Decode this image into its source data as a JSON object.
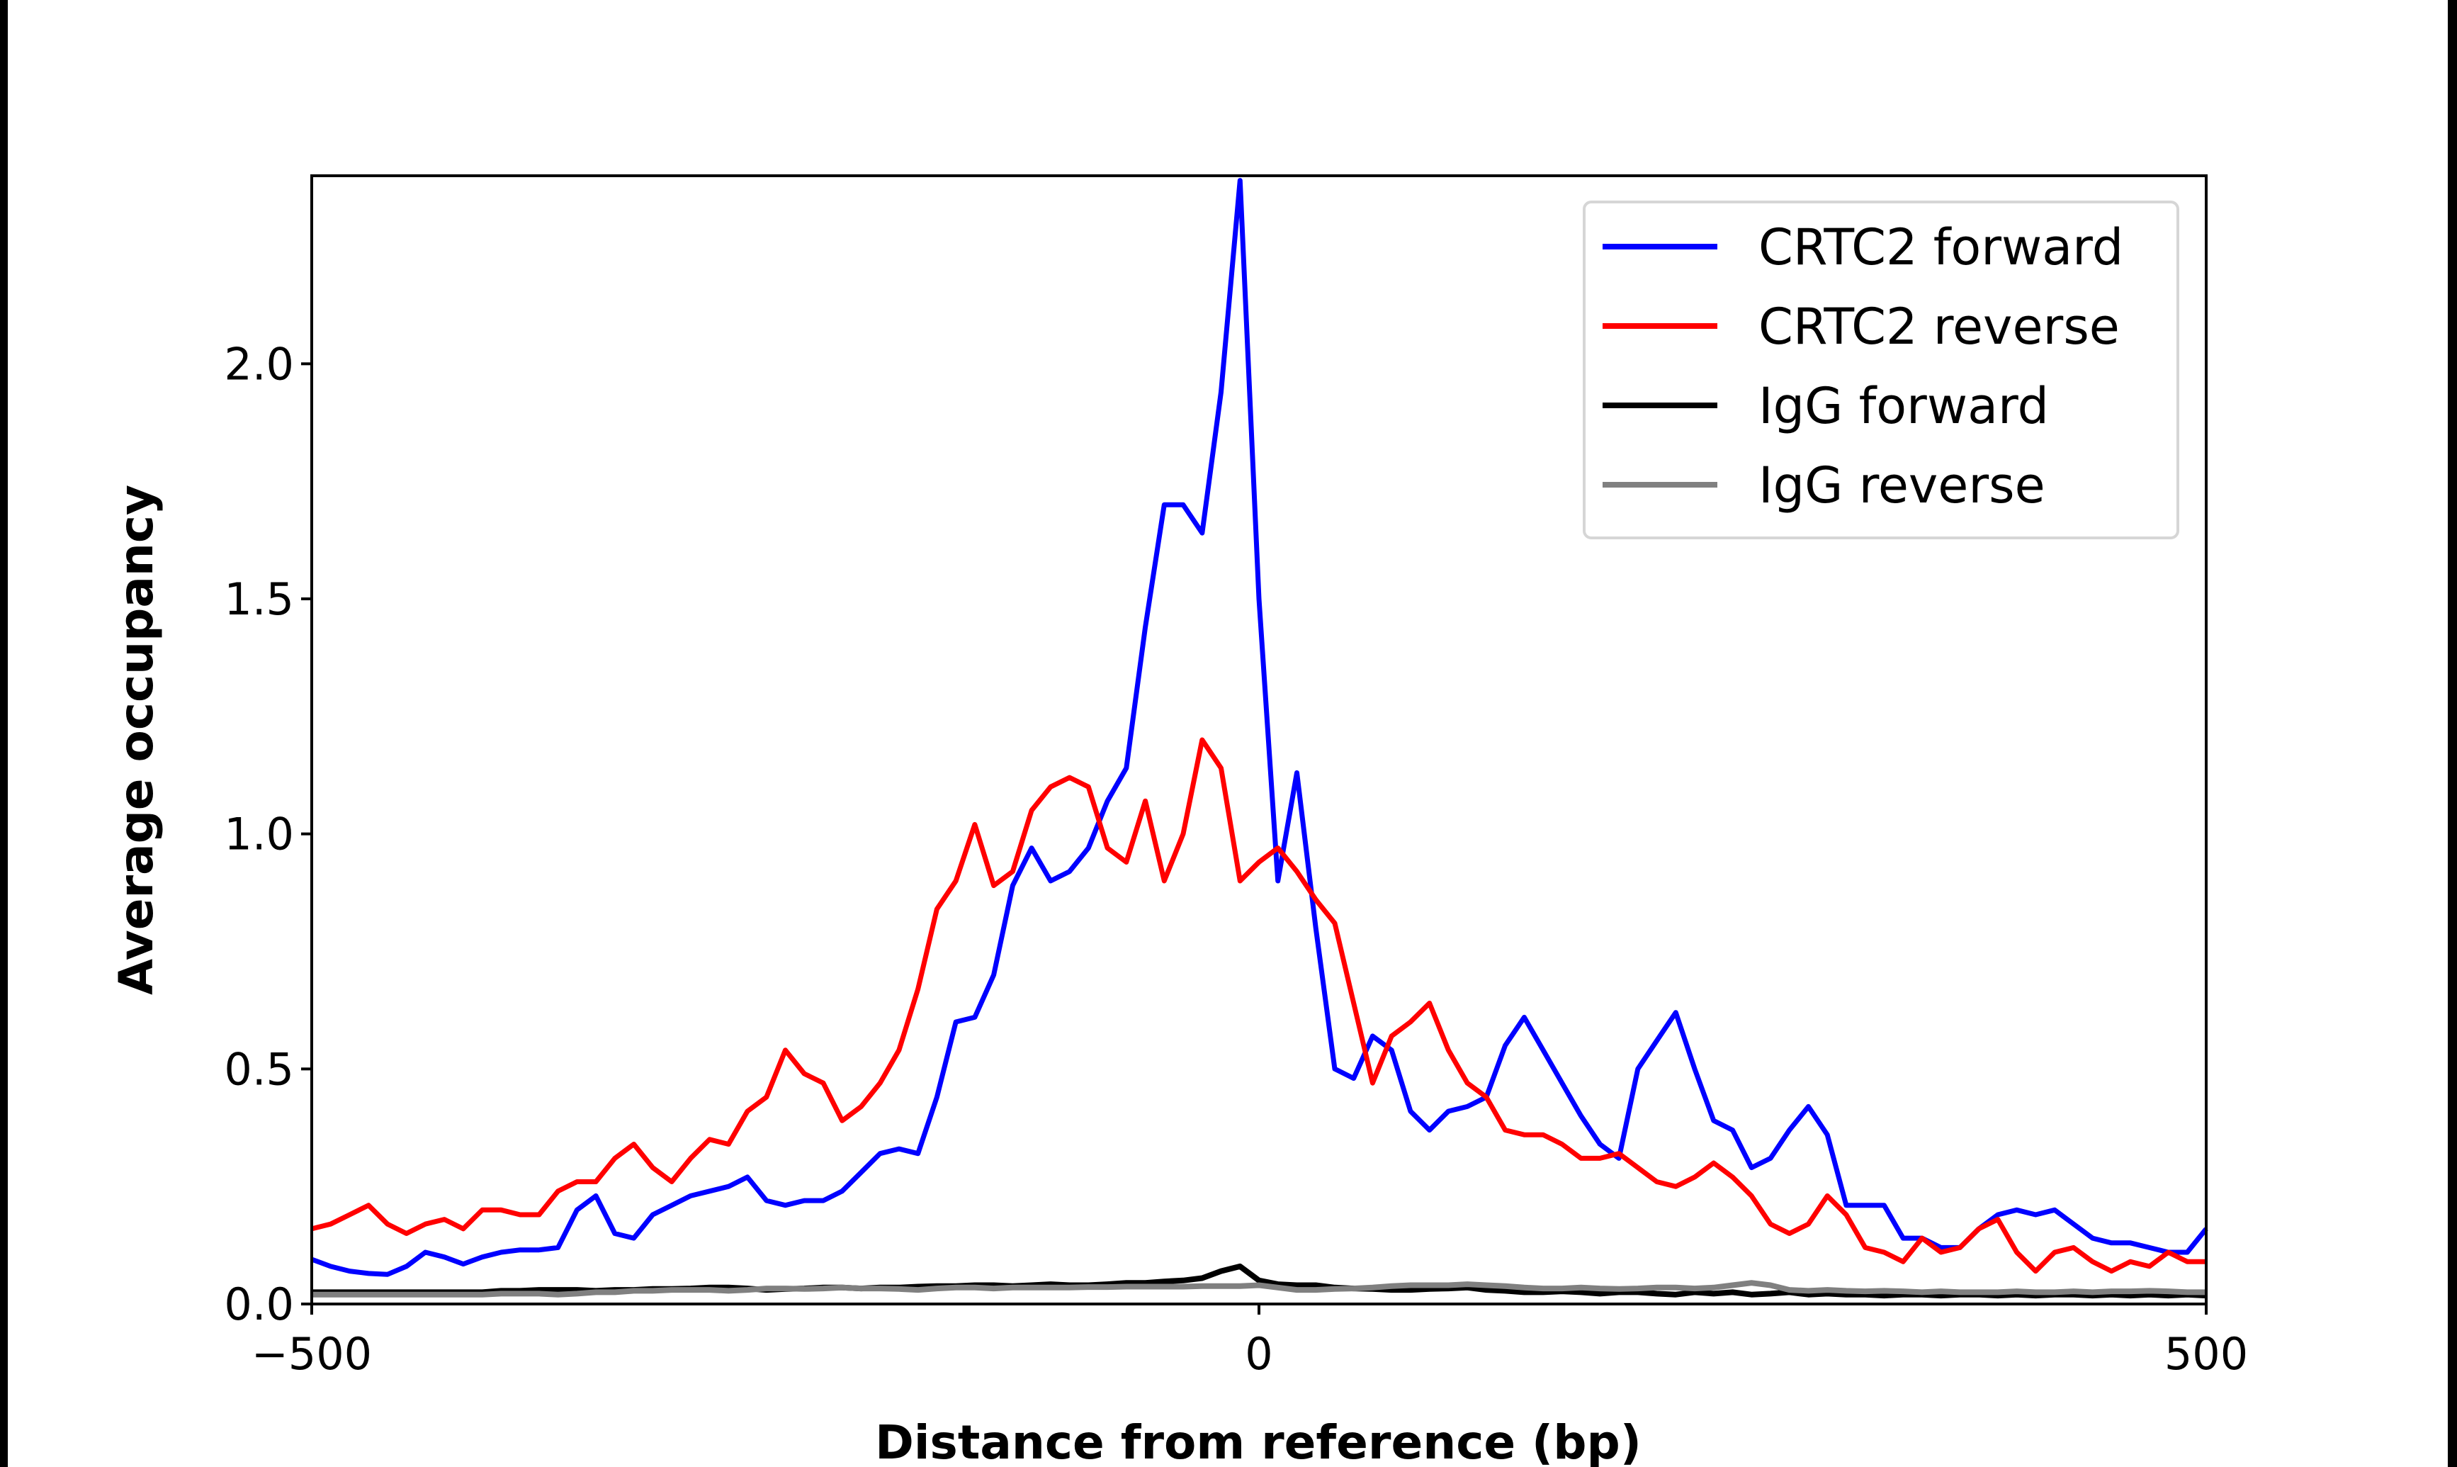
{
  "chart_data": {
    "type": "line",
    "title": "",
    "xlabel": "Distance from reference (bp)",
    "ylabel": "Average occupancy",
    "xlim": [
      -500,
      500
    ],
    "ylim": [
      0,
      2.4
    ],
    "xticks": [
      -500,
      0,
      500
    ],
    "xtick_labels": [
      "−500",
      "0",
      "500"
    ],
    "yticks": [
      0,
      0.5,
      1.0,
      1.5,
      2.0
    ],
    "ytick_labels": [
      "0.0",
      "0.5",
      "1.0",
      "1.5",
      "2.0"
    ],
    "grid": false,
    "legend_position": "top-right",
    "x_start": -500,
    "x_step": 10,
    "series": [
      {
        "name": "CRTC2 forward",
        "color": "#0000ff",
        "values": [
          0.095,
          0.08,
          0.07,
          0.065,
          0.063,
          0.08,
          0.11,
          0.1,
          0.085,
          0.1,
          0.11,
          0.115,
          0.115,
          0.12,
          0.2,
          0.23,
          0.15,
          0.14,
          0.19,
          0.21,
          0.23,
          0.24,
          0.25,
          0.27,
          0.22,
          0.21,
          0.22,
          0.22,
          0.24,
          0.28,
          0.32,
          0.33,
          0.32,
          0.44,
          0.6,
          0.61,
          0.7,
          0.89,
          0.97,
          0.9,
          0.92,
          0.97,
          1.07,
          1.14,
          1.44,
          1.7,
          1.7,
          1.64,
          1.94,
          2.39,
          1.5,
          0.9,
          1.13,
          0.8,
          0.5,
          0.48,
          0.57,
          0.54,
          0.41,
          0.37,
          0.41,
          0.42,
          0.44,
          0.55,
          0.61,
          0.54,
          0.47,
          0.4,
          0.34,
          0.31,
          0.5,
          0.56,
          0.62,
          0.5,
          0.39,
          0.37,
          0.29,
          0.31,
          0.37,
          0.42,
          0.36,
          0.21,
          0.21,
          0.21,
          0.14,
          0.14,
          0.12,
          0.12,
          0.16,
          0.19,
          0.2,
          0.19,
          0.2,
          0.17,
          0.14,
          0.13,
          0.13,
          0.12,
          0.11,
          0.11,
          0.16
        ]
      },
      {
        "name": "CRTC2 reverse",
        "color": "#ff0000",
        "values": [
          0.16,
          0.17,
          0.19,
          0.21,
          0.17,
          0.15,
          0.17,
          0.18,
          0.16,
          0.2,
          0.2,
          0.19,
          0.19,
          0.24,
          0.26,
          0.26,
          0.31,
          0.34,
          0.29,
          0.26,
          0.31,
          0.35,
          0.34,
          0.41,
          0.44,
          0.54,
          0.49,
          0.47,
          0.39,
          0.42,
          0.47,
          0.54,
          0.67,
          0.84,
          0.9,
          1.02,
          0.89,
          0.92,
          1.05,
          1.1,
          1.12,
          1.1,
          0.97,
          0.94,
          1.07,
          0.9,
          1.0,
          1.2,
          1.14,
          0.9,
          0.94,
          0.97,
          0.92,
          0.86,
          0.81,
          0.64,
          0.47,
          0.57,
          0.6,
          0.64,
          0.54,
          0.47,
          0.44,
          0.37,
          0.36,
          0.36,
          0.34,
          0.31,
          0.31,
          0.32,
          0.29,
          0.26,
          0.25,
          0.27,
          0.3,
          0.27,
          0.23,
          0.17,
          0.15,
          0.17,
          0.23,
          0.19,
          0.12,
          0.11,
          0.09,
          0.14,
          0.11,
          0.12,
          0.16,
          0.18,
          0.11,
          0.07,
          0.11,
          0.12,
          0.09,
          0.07,
          0.09,
          0.08,
          0.11,
          0.09,
          0.09
        ]
      },
      {
        "name": "IgG forward",
        "color": "#000000",
        "values": [
          0.025,
          0.025,
          0.025,
          0.025,
          0.025,
          0.025,
          0.025,
          0.025,
          0.025,
          0.025,
          0.028,
          0.028,
          0.03,
          0.03,
          0.03,
          0.028,
          0.03,
          0.03,
          0.032,
          0.032,
          0.033,
          0.035,
          0.035,
          0.033,
          0.03,
          0.032,
          0.033,
          0.035,
          0.035,
          0.033,
          0.035,
          0.035,
          0.037,
          0.038,
          0.038,
          0.04,
          0.04,
          0.038,
          0.04,
          0.042,
          0.04,
          0.04,
          0.042,
          0.045,
          0.045,
          0.048,
          0.05,
          0.055,
          0.07,
          0.08,
          0.05,
          0.042,
          0.04,
          0.04,
          0.035,
          0.033,
          0.032,
          0.03,
          0.03,
          0.032,
          0.033,
          0.035,
          0.03,
          0.028,
          0.025,
          0.025,
          0.027,
          0.025,
          0.022,
          0.025,
          0.025,
          0.022,
          0.02,
          0.025,
          0.022,
          0.025,
          0.02,
          0.022,
          0.025,
          0.02,
          0.022,
          0.02,
          0.02,
          0.018,
          0.02,
          0.02,
          0.018,
          0.02,
          0.02,
          0.018,
          0.02,
          0.018,
          0.02,
          0.02,
          0.018,
          0.02,
          0.018,
          0.02,
          0.018,
          0.02,
          0.018
        ]
      },
      {
        "name": "IgG reverse",
        "color": "#808080",
        "values": [
          0.02,
          0.02,
          0.02,
          0.02,
          0.02,
          0.02,
          0.02,
          0.02,
          0.02,
          0.02,
          0.022,
          0.022,
          0.022,
          0.02,
          0.022,
          0.025,
          0.025,
          0.028,
          0.028,
          0.03,
          0.03,
          0.03,
          0.028,
          0.03,
          0.033,
          0.033,
          0.032,
          0.033,
          0.035,
          0.033,
          0.033,
          0.032,
          0.03,
          0.033,
          0.035,
          0.035,
          0.033,
          0.035,
          0.035,
          0.035,
          0.035,
          0.036,
          0.036,
          0.037,
          0.037,
          0.037,
          0.037,
          0.038,
          0.038,
          0.038,
          0.04,
          0.035,
          0.03,
          0.03,
          0.032,
          0.033,
          0.035,
          0.038,
          0.04,
          0.04,
          0.04,
          0.042,
          0.04,
          0.038,
          0.035,
          0.033,
          0.033,
          0.035,
          0.033,
          0.032,
          0.033,
          0.035,
          0.035,
          0.033,
          0.035,
          0.04,
          0.045,
          0.04,
          0.03,
          0.028,
          0.03,
          0.028,
          0.027,
          0.028,
          0.027,
          0.025,
          0.027,
          0.025,
          0.025,
          0.025,
          0.027,
          0.025,
          0.025,
          0.027,
          0.025,
          0.027,
          0.027,
          0.028,
          0.027,
          0.025,
          0.025
        ]
      }
    ]
  }
}
